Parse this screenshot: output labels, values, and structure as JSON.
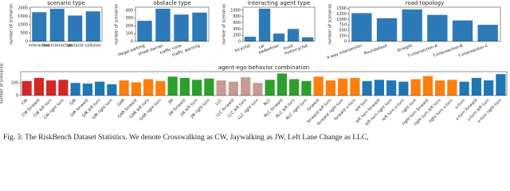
{
  "chart_data": [
    {
      "type": "bar",
      "title": "scenario type",
      "y_label": "number of scenarios",
      "categories": [
        "interactive",
        "non-interactive",
        "obstacle",
        "collision"
      ],
      "values": [
        1750,
        1950,
        1550,
        1800
      ],
      "color": "#2e7ab8",
      "ylim": [
        0,
        2050
      ],
      "yticks": [
        0,
        500,
        1000,
        1500,
        2000
      ]
    },
    {
      "type": "bar",
      "title": "obstacle type",
      "y_label": "number of scenarios",
      "categories": [
        "illegal parking",
        "street barrier",
        "traffic cone",
        "traffic warning"
      ],
      "values": [
        265,
        420,
        345,
        370
      ],
      "color": "#2e7ab8",
      "ylim": [
        0,
        440
      ],
      "yticks": [
        0,
        100,
        200,
        300,
        400
      ]
    },
    {
      "type": "bar",
      "title": "interacting agent type",
      "y_label": "number of scenarios",
      "categories": [
        "bicyclist",
        "car",
        "pedestrian",
        "truck",
        "motorcyclist"
      ],
      "values": [
        150,
        1050,
        250,
        400,
        130
      ],
      "color": "#2e7ab8",
      "ylim": [
        0,
        1100
      ],
      "yticks": [
        0,
        200,
        400,
        600,
        800,
        1000
      ]
    },
    {
      "type": "bar",
      "title": "road topology",
      "y_label": "number of scenarios",
      "categories": [
        "4-way intersection",
        "Roundabout",
        "Straight",
        "T-intersection-A",
        "T-intersection-B",
        "T-intersection-C"
      ],
      "values": [
        1280,
        1050,
        1450,
        1200,
        950,
        750
      ],
      "color": "#2e7ab8",
      "ylim": [
        0,
        1550
      ],
      "yticks": [
        0,
        250,
        500,
        750,
        1000,
        1250,
        1500
      ]
    },
    {
      "type": "bar",
      "title": "agent-ego behavior combination",
      "y_label": "number of scenarios",
      "categories": [
        "CW",
        "CW forward",
        "CW left turn",
        "CW right turn",
        "GIR",
        "GIR forward",
        "GIR left turn",
        "GIR right turn",
        "GAR",
        "GAR forward",
        "GAR left turn",
        "GAR right turn",
        "JW",
        "JW forward",
        "JW left turn",
        "JW right turn",
        "LLC",
        "LLC forward",
        "LLC left turn",
        "LLC right turn",
        "RLC",
        "RLC forward",
        "RLC left turn",
        "RLC right turn",
        "forward",
        "forward left turn",
        "forward right turn",
        "forward u-turn",
        "left turn",
        "left turn forward",
        "left turn right turn",
        "left turn u-turn",
        "right turn",
        "right turn forward",
        "right turn left turn",
        "right turn u-turn",
        "u-turn",
        "u-turn forward",
        "u-turn left turn",
        "u-turn right turn"
      ],
      "values": [
        115,
        140,
        120,
        125,
        100,
        95,
        110,
        90,
        120,
        105,
        130,
        115,
        150,
        140,
        125,
        135,
        120,
        110,
        145,
        100,
        125,
        175,
        130,
        115,
        150,
        120,
        135,
        140,
        115,
        125,
        120,
        110,
        130,
        155,
        120,
        125,
        110,
        140,
        120,
        170
      ],
      "colors": [
        "#d62728",
        "#d62728",
        "#d62728",
        "#d62728",
        "#1f77b4",
        "#1f77b4",
        "#1f77b4",
        "#1f77b4",
        "#ff7f0e",
        "#ff7f0e",
        "#ff7f0e",
        "#ff7f0e",
        "#2ca02c",
        "#2ca02c",
        "#2ca02c",
        "#2ca02c",
        "#c49c94",
        "#c49c94",
        "#c49c94",
        "#c49c94",
        "#2ca02c",
        "#2ca02c",
        "#2ca02c",
        "#2ca02c",
        "#ff7f0e",
        "#ff7f0e",
        "#ff7f0e",
        "#ff7f0e",
        "#1f77b4",
        "#1f77b4",
        "#1f77b4",
        "#1f77b4",
        "#ff7f0e",
        "#ff7f0e",
        "#ff7f0e",
        "#ff7f0e",
        "#1f77b4",
        "#1f77b4",
        "#1f77b4",
        "#1f77b4"
      ],
      "ylim": [
        0,
        190
      ],
      "yticks": [
        0,
        100
      ]
    }
  ],
  "caption": "Fig. 3: The RiskBench Dataset Statistics. We denote Crosswalking as CW, Jaywalking as JW, Left Lane Change as LLC,"
}
